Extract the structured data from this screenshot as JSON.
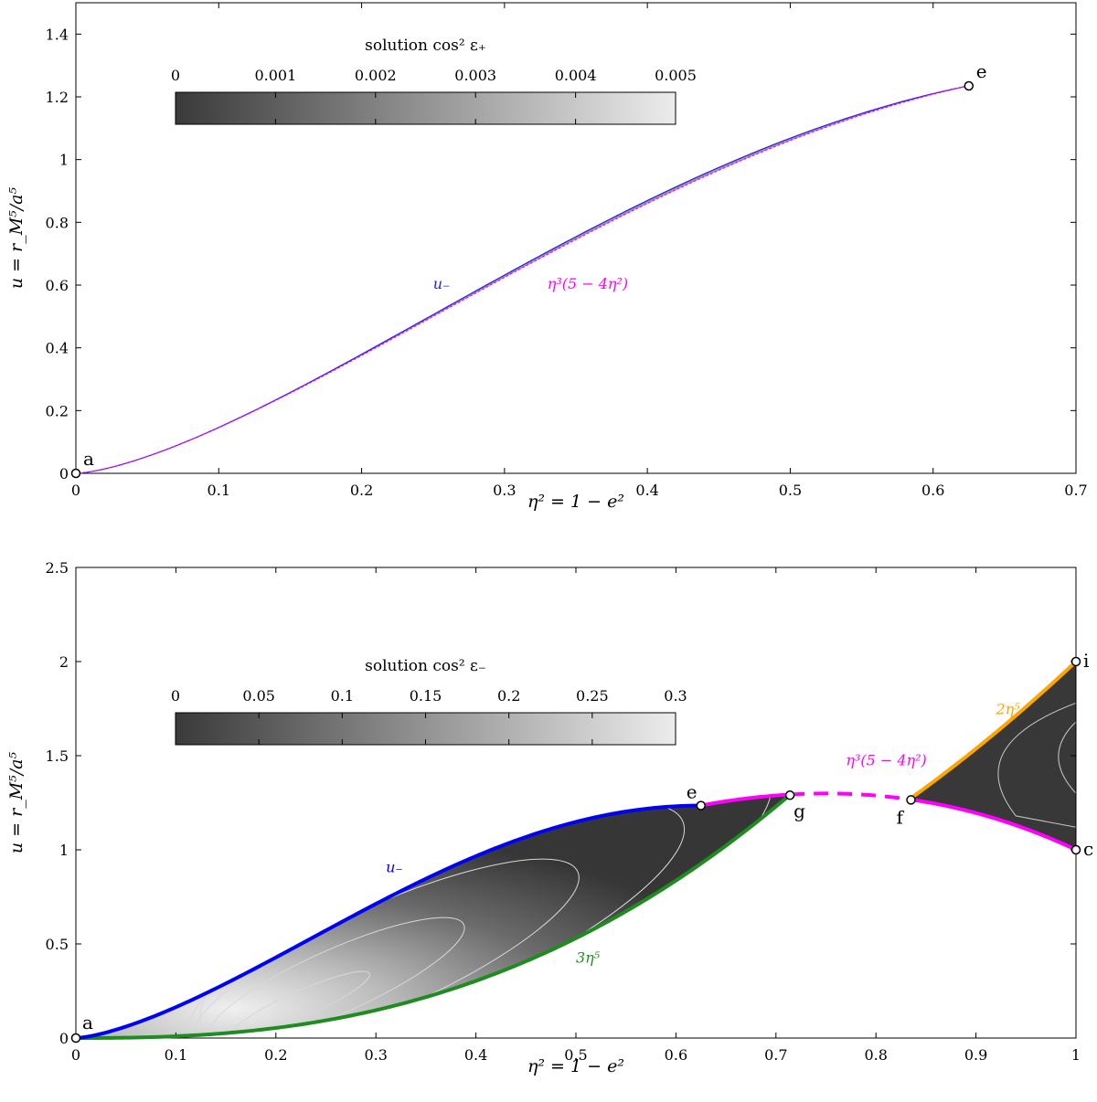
{
  "chart_data": [
    {
      "type": "line",
      "panel": "top",
      "xlabel": "η² = 1 − e²",
      "ylabel": "u = r_M⁵/a⁵",
      "xlim": [
        0,
        0.7
      ],
      "ylim": [
        0,
        1.5
      ],
      "xticks": [
        0,
        0.1,
        0.2,
        0.3,
        0.4,
        0.5,
        0.6,
        0.7
      ],
      "yticks": [
        0,
        0.2,
        0.4,
        0.6,
        0.8,
        1,
        1.2,
        1.4
      ],
      "xtick_labels": [
        "0",
        "0.1",
        "0.2",
        "0.3",
        "0.4",
        "0.5",
        "0.6",
        "0.7"
      ],
      "ytick_labels": [
        "0",
        "0.2",
        "0.4",
        "0.6",
        "0.8",
        "1",
        "1.2",
        "1.4"
      ],
      "colorbar": {
        "title": "solution cos² ε₊",
        "min": 0,
        "max": 0.005,
        "ticks": [
          0,
          0.001,
          0.002,
          0.003,
          0.004,
          0.005
        ],
        "tick_labels": [
          "0",
          "0.001",
          "0.002",
          "0.003",
          "0.004",
          "0.005"
        ]
      },
      "series": [
        {
          "name": "u₋",
          "color": "#1f1fff",
          "x": [
            0,
            0.1,
            0.2,
            0.3,
            0.4,
            0.5,
            0.6,
            0.625
          ]
        },
        {
          "name": "η³(5 − 4η²)",
          "color": "#ff00ff",
          "x": [
            0,
            0.1,
            0.2,
            0.3,
            0.4,
            0.5,
            0.6,
            0.625
          ]
        }
      ],
      "points": [
        {
          "label": "a",
          "x": 0,
          "y": 0
        },
        {
          "label": "e",
          "x": 0.625,
          "y": 1.235
        }
      ],
      "annotations": [
        {
          "text": "u₋",
          "x": 0.25,
          "y": 0.6,
          "color": "#1f1fff"
        },
        {
          "text": "η³(5 − 4η²)",
          "x": 0.33,
          "y": 0.6,
          "color": "#ff00ff"
        }
      ]
    },
    {
      "type": "line",
      "panel": "bottom",
      "xlabel": "η² = 1 − e²",
      "ylabel": "u = r_M⁵/a⁵",
      "xlim": [
        0,
        1
      ],
      "ylim": [
        0,
        2.5
      ],
      "xticks": [
        0,
        0.1,
        0.2,
        0.3,
        0.4,
        0.5,
        0.6,
        0.7,
        0.8,
        0.9,
        1
      ],
      "yticks": [
        0,
        0.5,
        1,
        1.5,
        2,
        2.5
      ],
      "xtick_labels": [
        "0",
        "0.1",
        "0.2",
        "0.3",
        "0.4",
        "0.5",
        "0.6",
        "0.7",
        "0.8",
        "0.9",
        "1"
      ],
      "ytick_labels": [
        "0",
        "0.5",
        "1",
        "1.5",
        "2",
        "2.5"
      ],
      "colorbar": {
        "title": "solution cos² ε₋",
        "min": 0,
        "max": 0.3,
        "ticks": [
          0,
          0.05,
          0.1,
          0.15,
          0.2,
          0.25,
          0.3
        ],
        "tick_labels": [
          "0",
          "0.05",
          "0.1",
          "0.15",
          "0.2",
          "0.25",
          "0.3"
        ]
      },
      "series": [
        {
          "name": "u₋",
          "color": "#0000ff",
          "x_range": [
            0,
            0.625
          ]
        },
        {
          "name": "3η⁵",
          "color": "#1e8c1e",
          "x_range": [
            0,
            0.714
          ]
        },
        {
          "name": "η³(5 − 4η²)",
          "color": "#ff00ff",
          "segments": [
            [
              0.625,
              0.714
            ],
            [
              0.835,
              1
            ]
          ],
          "dashed_segment": [
            0.714,
            0.835
          ]
        },
        {
          "name": "2η⁵",
          "color": "#ffa500",
          "x_range": [
            0.835,
            1
          ]
        }
      ],
      "points": [
        {
          "label": "a",
          "x": 0,
          "y": 0
        },
        {
          "label": "e",
          "x": 0.625,
          "y": 1.235
        },
        {
          "label": "g",
          "x": 0.714,
          "y": 1.29
        },
        {
          "label": "f",
          "x": 0.835,
          "y": 1.265
        },
        {
          "label": "i",
          "x": 1,
          "y": 2
        },
        {
          "label": "c",
          "x": 1,
          "y": 1
        }
      ],
      "annotations": [
        {
          "text": "u₋",
          "x": 0.31,
          "y": 0.88,
          "color": "#0000ff"
        },
        {
          "text": "3η⁵",
          "x": 0.5,
          "y": 0.4,
          "color": "#1e8c1e"
        },
        {
          "text": "η³(5 − 4η²)",
          "x": 0.77,
          "y": 1.45,
          "color": "#ff00ff"
        },
        {
          "text": "2η⁵",
          "x": 0.92,
          "y": 1.72,
          "color": "#ffa500"
        }
      ]
    }
  ]
}
